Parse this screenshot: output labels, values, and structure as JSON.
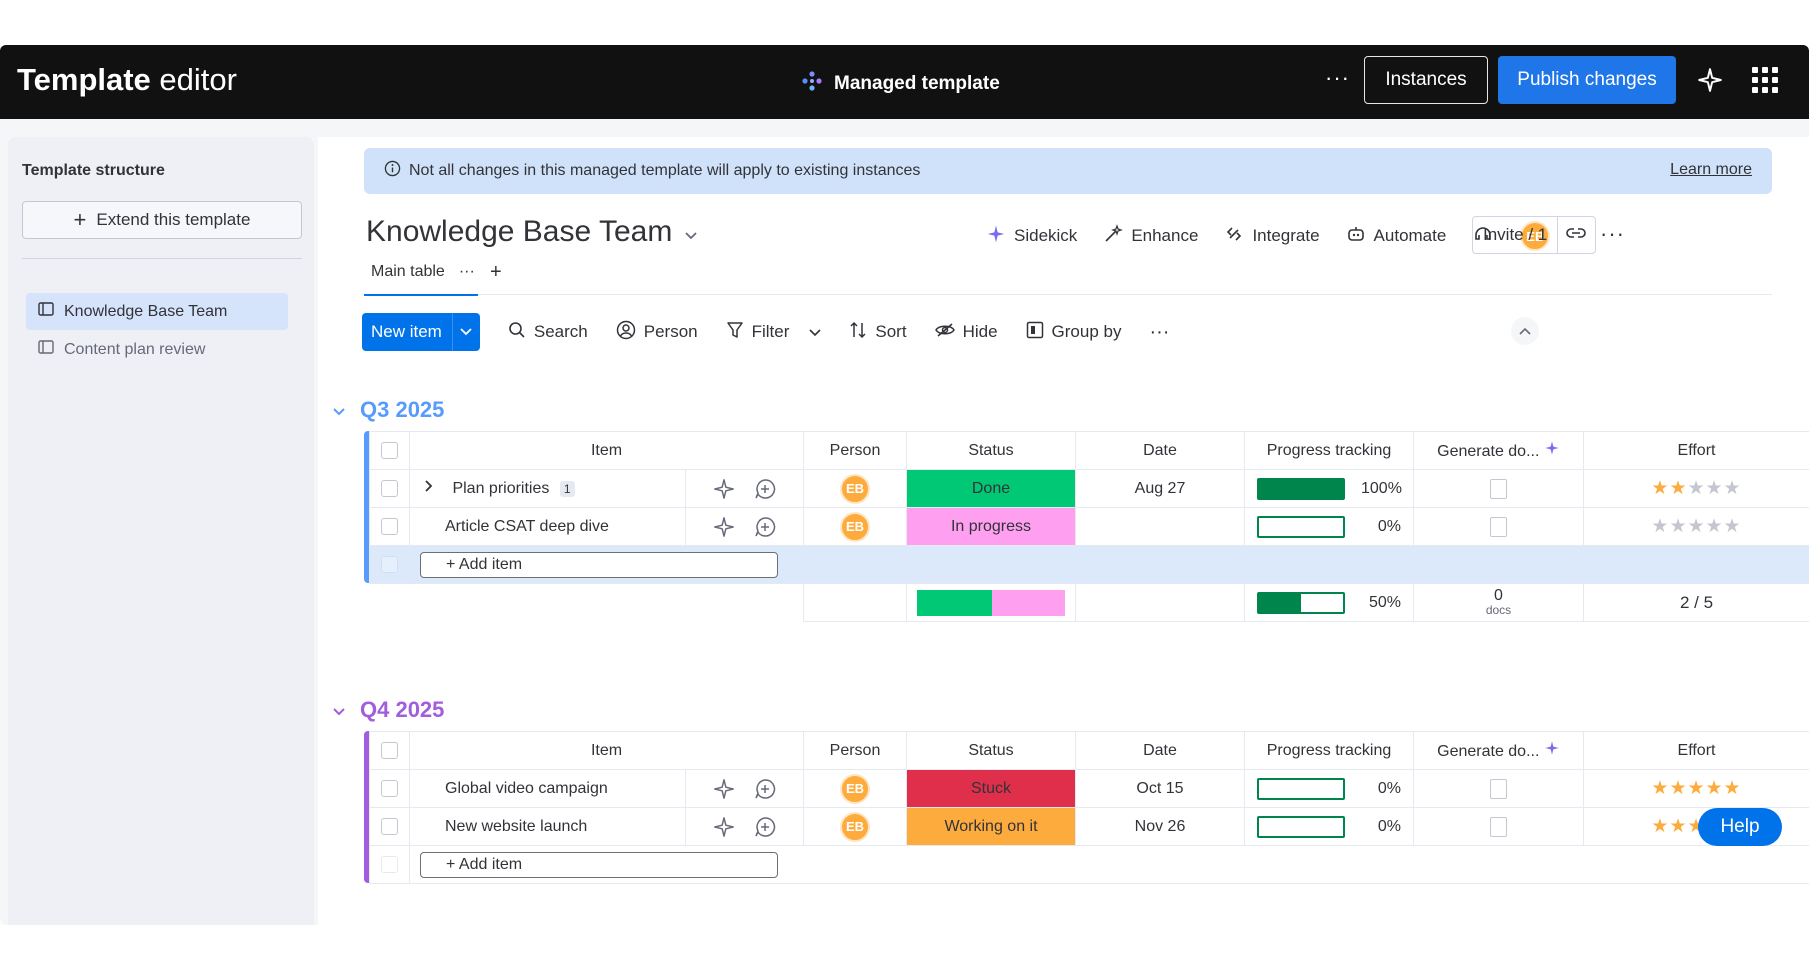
{
  "topbar": {
    "title_bold": "Template",
    "title_rest": " editor",
    "center_label": "Managed template",
    "more": "···",
    "instances_label": "Instances",
    "publish_label": "Publish changes"
  },
  "sidebar": {
    "title": "Template structure",
    "extend_label": "Extend this template",
    "items": [
      {
        "label": "Knowledge Base Team",
        "active": true
      },
      {
        "label": "Content plan review",
        "active": false
      }
    ]
  },
  "banner": {
    "text": "Not all changes in this managed template will apply to existing instances",
    "link": "Learn more"
  },
  "board": {
    "title": "Knowledge Base Team",
    "actions": [
      "Sidekick",
      "Enhance",
      "Integrate",
      "Automate"
    ],
    "avatar_initials": "EB",
    "invite_label": "Invite / 1",
    "more": "···"
  },
  "tabs": {
    "main_label": "Main table",
    "tab_more": "···",
    "add": "+"
  },
  "toolbar": {
    "new_item": "New item",
    "search": "Search",
    "person": "Person",
    "filter": "Filter",
    "sort": "Sort",
    "hide": "Hide",
    "group_by": "Group by",
    "more": "···"
  },
  "columns": [
    "Item",
    "Person",
    "Status",
    "Date",
    "Progress tracking",
    "Generate do...",
    "Effort"
  ],
  "groups": [
    {
      "title": "Q3 2025",
      "color": "#579bfc",
      "rows": [
        {
          "item": "Plan priorities",
          "subitems": "1",
          "person": "EB",
          "status": "Done",
          "status_color": "#00c875",
          "date": "Aug 27",
          "progress": 100,
          "progress_label": "100%",
          "effort": 2
        },
        {
          "item": "Article CSAT deep dive",
          "subitems": "",
          "person": "EB",
          "status": "In progress",
          "status_color": "#ff9ff0",
          "date": "",
          "progress": 0,
          "progress_label": "0%",
          "effort": 0
        }
      ],
      "add_label": "+ Add item",
      "summary": {
        "progress": 50,
        "progress_label": "50%",
        "docs_count": "0",
        "docs_label": "docs",
        "effort": "2 / 5"
      }
    },
    {
      "title": "Q4 2025",
      "color": "#a25ddc",
      "rows": [
        {
          "item": "Global video campaign",
          "subitems": "",
          "person": "EB",
          "status": "Stuck",
          "status_color": "#df2f4a",
          "date": "Oct 15",
          "progress": 0,
          "progress_label": "0%",
          "effort": 5
        },
        {
          "item": "New website launch",
          "subitems": "",
          "person": "EB",
          "status": "Working on it",
          "status_color": "#fdab3d",
          "date": "Nov 26",
          "progress": 0,
          "progress_label": "0%",
          "effort": 3
        }
      ],
      "add_label": "+ Add item"
    }
  ],
  "help_label": "Help"
}
